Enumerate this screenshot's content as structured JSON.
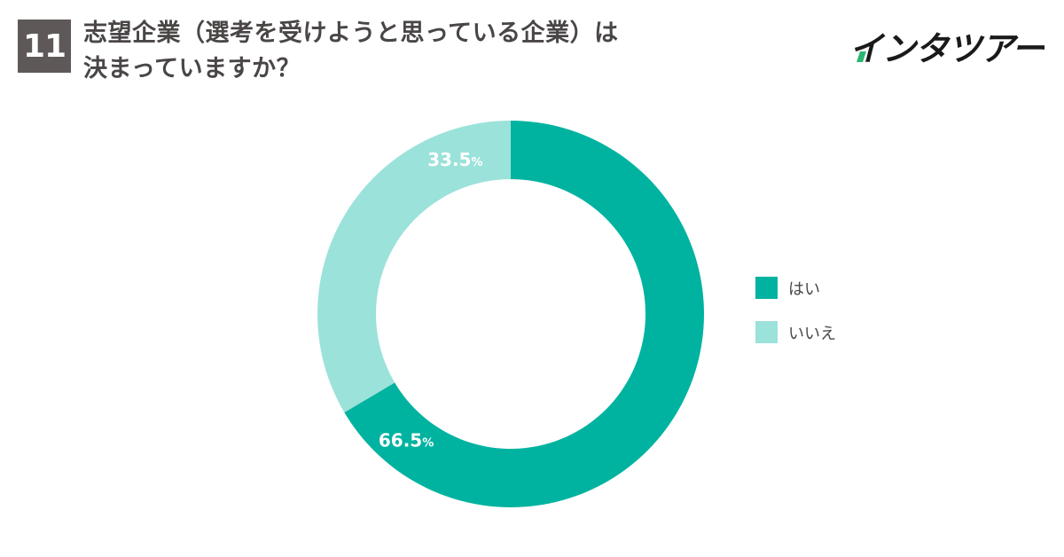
{
  "question": {
    "number": "11",
    "title_line1": "志望企業（選考を受けようと思っている企業）は",
    "title_line2": "決まっていますか？"
  },
  "brand": {
    "logo_text": "インタツアー"
  },
  "colors": {
    "primary": "#00b3a0",
    "secondary": "#9be2da",
    "qnum_bg": "#5e5958"
  },
  "chart_data": {
    "type": "pie",
    "donut": true,
    "title": "",
    "legend_position": "right",
    "categories": [
      "はい",
      "いいえ"
    ],
    "values": [
      66.5,
      33.5
    ],
    "labels": [
      "66.5",
      "33.5"
    ],
    "unit": "%",
    "colors": [
      "#00b3a0",
      "#9be2da"
    ]
  }
}
